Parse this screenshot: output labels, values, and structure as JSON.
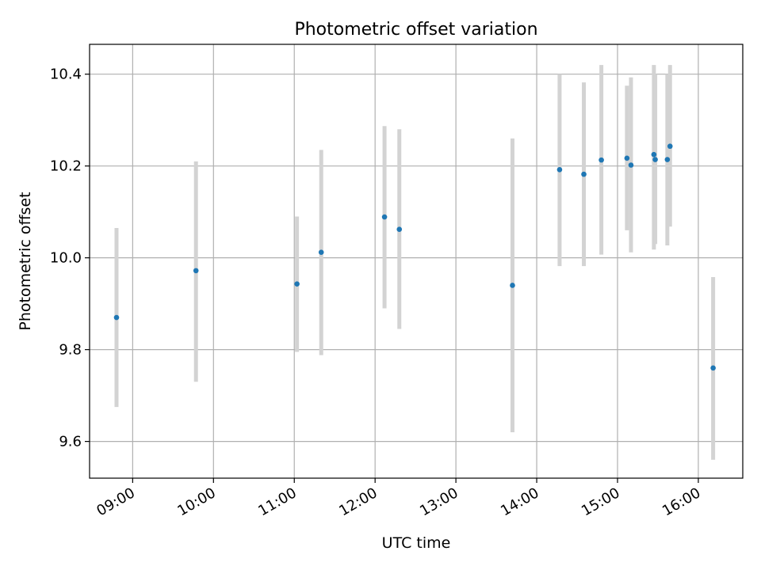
{
  "chart_data": {
    "type": "scatter",
    "title": "Photometric offset variation",
    "xlabel": "UTC time",
    "ylabel": "Photometric offset",
    "x_unit": "UTC time (HH:MM)",
    "xlim": [
      "08:28",
      "16:33"
    ],
    "ylim": [
      9.52,
      10.465
    ],
    "grid": true,
    "x_ticks": [
      "09:00",
      "10:00",
      "11:00",
      "12:00",
      "13:00",
      "14:00",
      "15:00",
      "16:00"
    ],
    "y_ticks": [
      "9.6",
      "9.8",
      "10.0",
      "10.2",
      "10.4"
    ],
    "y_tick_values": [
      9.6,
      9.8,
      10.0,
      10.2,
      10.4
    ],
    "colors": {
      "marker": "#1f77b4",
      "errorbar": "#d3d3d3",
      "grid": "#b0b0b0",
      "axes": "#000000"
    },
    "points": [
      {
        "x": "08:48",
        "y": 9.87,
        "ylow": 9.675,
        "yhigh": 10.065
      },
      {
        "x": "09:47",
        "y": 9.972,
        "ylow": 9.73,
        "yhigh": 10.21
      },
      {
        "x": "11:02",
        "y": 9.943,
        "ylow": 9.795,
        "yhigh": 10.09
      },
      {
        "x": "11:20",
        "y": 10.012,
        "ylow": 9.788,
        "yhigh": 10.235
      },
      {
        "x": "12:07",
        "y": 10.089,
        "ylow": 9.89,
        "yhigh": 10.287
      },
      {
        "x": "12:18",
        "y": 10.062,
        "ylow": 9.845,
        "yhigh": 10.28
      },
      {
        "x": "13:42",
        "y": 9.94,
        "ylow": 9.62,
        "yhigh": 10.26
      },
      {
        "x": "14:17",
        "y": 10.192,
        "ylow": 9.982,
        "yhigh": 10.4
      },
      {
        "x": "14:35",
        "y": 10.182,
        "ylow": 9.982,
        "yhigh": 10.382
      },
      {
        "x": "14:48",
        "y": 10.213,
        "ylow": 10.007,
        "yhigh": 10.42
      },
      {
        "x": "15:07",
        "y": 10.217,
        "ylow": 10.06,
        "yhigh": 10.375
      },
      {
        "x": "15:10",
        "y": 10.202,
        "ylow": 10.012,
        "yhigh": 10.393
      },
      {
        "x": "15:27",
        "y": 10.225,
        "ylow": 10.018,
        "yhigh": 10.42
      },
      {
        "x": "15:28",
        "y": 10.214,
        "ylow": 10.03,
        "yhigh": 10.4
      },
      {
        "x": "15:37",
        "y": 10.214,
        "ylow": 10.027,
        "yhigh": 10.4
      },
      {
        "x": "15:39",
        "y": 10.243,
        "ylow": 10.068,
        "yhigh": 10.42
      },
      {
        "x": "16:11",
        "y": 9.76,
        "ylow": 9.56,
        "yhigh": 9.958
      }
    ]
  }
}
